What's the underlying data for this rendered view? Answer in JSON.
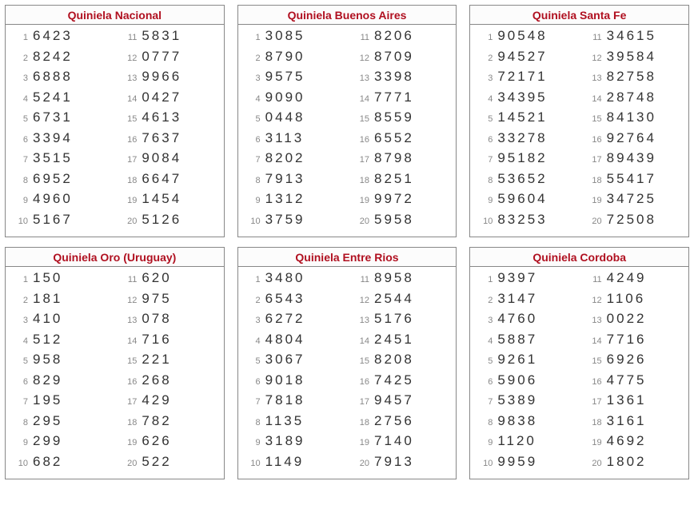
{
  "panels": [
    {
      "title": "Quiniela Nacional",
      "left": [
        "6423",
        "8242",
        "6888",
        "5241",
        "6731",
        "3394",
        "3515",
        "6952",
        "4960",
        "5167"
      ],
      "right": [
        "5831",
        "0777",
        "9966",
        "0427",
        "4613",
        "7637",
        "9084",
        "6647",
        "1454",
        "5126"
      ]
    },
    {
      "title": "Quiniela Buenos Aires",
      "left": [
        "3085",
        "8790",
        "9575",
        "9090",
        "0448",
        "3113",
        "8202",
        "7913",
        "1312",
        "3759"
      ],
      "right": [
        "8206",
        "8709",
        "3398",
        "7771",
        "8559",
        "6552",
        "8798",
        "8251",
        "9972",
        "5958"
      ]
    },
    {
      "title": "Quiniela Santa Fe",
      "left": [
        "90548",
        "94527",
        "72171",
        "34395",
        "14521",
        "33278",
        "95182",
        "53652",
        "59604",
        "83253"
      ],
      "right": [
        "34615",
        "39584",
        "82758",
        "28748",
        "84130",
        "92764",
        "89439",
        "55417",
        "34725",
        "72508"
      ]
    },
    {
      "title": "Quiniela Oro (Uruguay)",
      "left": [
        "150",
        "181",
        "410",
        "512",
        "958",
        "829",
        "195",
        "295",
        "299",
        "682"
      ],
      "right": [
        "620",
        "975",
        "078",
        "716",
        "221",
        "268",
        "429",
        "782",
        "626",
        "522"
      ]
    },
    {
      "title": "Quiniela Entre Rios",
      "left": [
        "3480",
        "6543",
        "6272",
        "4804",
        "3067",
        "9018",
        "7818",
        "1135",
        "3189",
        "1149"
      ],
      "right": [
        "8958",
        "2544",
        "5176",
        "2451",
        "8208",
        "7425",
        "9457",
        "2756",
        "7140",
        "7913"
      ]
    },
    {
      "title": "Quiniela Cordoba",
      "left": [
        "9397",
        "3147",
        "4760",
        "5887",
        "9261",
        "5906",
        "5389",
        "9838",
        "1120",
        "9959"
      ],
      "right": [
        "4249",
        "1106",
        "0022",
        "7716",
        "6926",
        "4775",
        "1361",
        "3161",
        "4692",
        "1802"
      ]
    }
  ],
  "colors": {
    "title": "#b01020",
    "border": "#888888",
    "index": "#888888",
    "value": "#333333",
    "background": "#ffffff"
  },
  "layout": {
    "columns": 3,
    "rows": 2,
    "panel_rows_per_column": 10,
    "title_fontsize": 14,
    "value_fontsize": 17,
    "index_fontsize": 11,
    "value_letter_spacing": 3
  }
}
